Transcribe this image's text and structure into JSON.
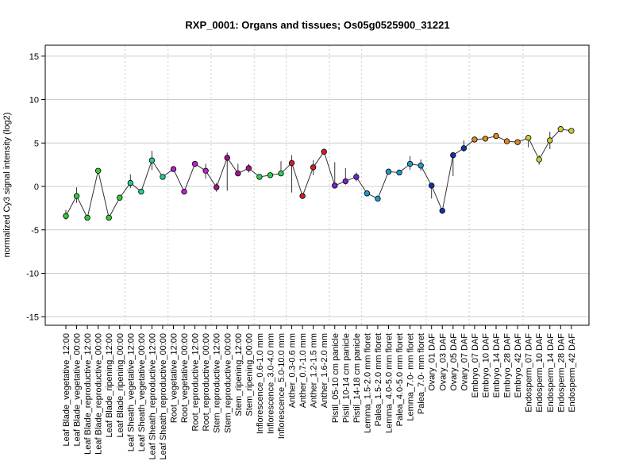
{
  "chart_data": {
    "type": "scatter",
    "title": "RXP_0001: Organs and tissues; Os05g0525900_31221",
    "xlabel": "",
    "ylabel": "normalized Cy3 signal intensity (log2)",
    "ylim": [
      -16,
      16
    ],
    "yticks": [
      -15,
      -10,
      -5,
      0,
      5,
      10,
      15
    ],
    "grid": true,
    "legend": "none",
    "points_connected": true,
    "categories": [
      "Leaf Blade_vegetative_12:00",
      "Leaf Blade_vegetative_00:00",
      "Leaf Blade_reproductive_12:00",
      "Leaf Blade_reproductive_00:00",
      "Leaf Blade_ripening_12:00",
      "Leaf Blade_ripening_00:00",
      "Leaf Sheath_vegetative_12:00",
      "Leaf Sheath_vegetative_00:00",
      "Leaf Sheath_reproductive_12:00",
      "Leaf Sheath_reproductive_00:00",
      "Root_vegetative_12:00",
      "Root_vegetative_00:00",
      "Root_reproductive_12:00",
      "Root_reproductive_00:00",
      "Stem_reproductive_12:00",
      "Stem_reproductive_00:00",
      "Stem_ripening_12:00",
      "Stem_ripening_00:00",
      "Inflorescence_0.6-1.0 mm",
      "Inflorescence_3.0-4.0 mm",
      "Inflorescence_5.0-10.0 mm",
      "Anther_0.3-0.6 mm",
      "Anther_0.7-1.0 mm",
      "Anther_1.2-1.5 mm",
      "Anther_1.6-2.0 mm",
      "Pistil_05-10 cm panicle",
      "Pistil_10-14 cm panicle",
      "Pistil_14-18 cm panicle",
      "Lemma_1.5-2.0 mm floret",
      "Palea_1.5-2.0 mm floret",
      "Lemma_4.0-5.0 mm floret",
      "Palea_4.0-5.0 mm floret",
      "Lemma_7.0- mm floret",
      "Palea_7.0- mm floret",
      "Ovary_01 DAF",
      "Ovary_03 DAF",
      "Ovary_05 DAF",
      "Ovary_07 DAF",
      "Embryo_07 DAF",
      "Embryo_10 DAF",
      "Embryo_14 DAF",
      "Embryo_28 DAF",
      "Embryo_42 DAF",
      "Endosperm_07 DAF",
      "Endosperm_10 DAF",
      "Endosperm_14 DAF",
      "Endosperm_28 DAF",
      "Endosperm_42 DAF"
    ],
    "values": [
      -3.4,
      -1.1,
      -3.6,
      1.8,
      -3.6,
      -1.3,
      0.4,
      -0.6,
      3.0,
      1.1,
      2.0,
      -0.6,
      2.6,
      1.8,
      -0.1,
      3.3,
      1.5,
      2.1,
      1.1,
      1.3,
      1.5,
      2.7,
      -1.1,
      2.2,
      4.0,
      0.1,
      0.6,
      1.1,
      -0.8,
      -1.4,
      1.7,
      1.6,
      2.6,
      2.4,
      0.1,
      -2.8,
      3.6,
      4.4,
      5.4,
      5.5,
      5.8,
      5.2,
      5.1,
      5.6,
      3.1,
      5.3,
      6.6,
      6.4
    ],
    "error_low": [
      -3.8,
      -1.9,
      -3.8,
      1.5,
      -3.8,
      -1.5,
      -0.2,
      -0.8,
      1.9,
      0.9,
      1.8,
      -0.8,
      2.4,
      0.9,
      -0.6,
      -0.5,
      1.3,
      1.6,
      0.9,
      1.1,
      1.3,
      -0.7,
      -1.3,
      1.3,
      3.8,
      -0.1,
      0.2,
      0.6,
      -1.0,
      -1.6,
      1.4,
      1.4,
      1.9,
      1.8,
      -1.4,
      -3.0,
      1.2,
      4.0,
      5.2,
      5.3,
      5.6,
      5.0,
      4.9,
      4.5,
      2.5,
      4.3,
      6.4,
      6.2
    ],
    "error_high": [
      -2.7,
      -0.1,
      -3.4,
      2.1,
      -3.4,
      -1.1,
      1.4,
      -0.4,
      4.1,
      1.3,
      2.2,
      -0.4,
      2.8,
      2.6,
      0.4,
      3.9,
      2.6,
      2.6,
      1.3,
      1.5,
      2.9,
      3.6,
      -0.9,
      3.0,
      4.2,
      2.8,
      2.1,
      1.6,
      -0.6,
      -1.2,
      2.0,
      1.8,
      3.5,
      3.1,
      0.3,
      -2.6,
      3.8,
      5.3,
      5.6,
      5.7,
      6.0,
      5.4,
      5.3,
      5.9,
      3.6,
      6.3,
      6.8,
      6.6
    ],
    "colors": [
      "#33cc33",
      "#33cc33",
      "#33cc33",
      "#33cc33",
      "#33cc33",
      "#33cc33",
      "#22c99a",
      "#22c99a",
      "#22c99a",
      "#22c99a",
      "#bb22cc",
      "#bb22cc",
      "#bb22cc",
      "#bb22cc",
      "#aa1188",
      "#aa1188",
      "#aa1188",
      "#aa1188",
      "#33cc55",
      "#33cc55",
      "#33cc55",
      "#cc2222",
      "#cc2222",
      "#cc2222",
      "#cc2222",
      "#7722cc",
      "#7722cc",
      "#7722cc",
      "#2299cc",
      "#2299cc",
      "#2299cc",
      "#2299cc",
      "#2299cc",
      "#2299cc",
      "#1133aa",
      "#1133aa",
      "#1133aa",
      "#1133aa",
      "#dd8822",
      "#dd8822",
      "#dd8822",
      "#dd8822",
      "#dd8822",
      "#cccc33",
      "#cccc33",
      "#cccc33",
      "#cccc33",
      "#cccc33"
    ],
    "group_separators_after": [
      5,
      9,
      13,
      17,
      20,
      24,
      27,
      33,
      37,
      42
    ]
  }
}
